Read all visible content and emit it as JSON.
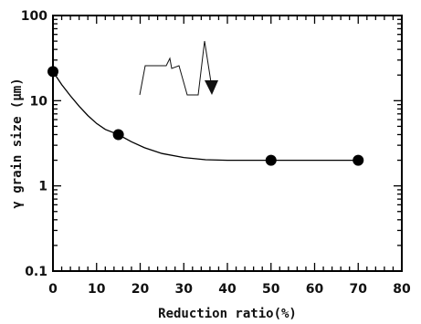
{
  "chart_data": {
    "type": "line",
    "title": "",
    "xlabel": "Reduction ratio(%)",
    "ylabel": "γ grain size (μm)",
    "xlim": [
      0,
      80
    ],
    "ylim": [
      0.1,
      100
    ],
    "y_scale": "log",
    "grid": false,
    "x_ticks": [
      "0",
      "10",
      "20",
      "30",
      "40",
      "50",
      "60",
      "70",
      "80"
    ],
    "y_ticks": [
      "0.1",
      "1",
      "10",
      "100"
    ],
    "series": [
      {
        "type": "scatter",
        "marker": "filled-circle",
        "color": "#000000",
        "points": [
          [
            0,
            22
          ],
          [
            15,
            4
          ],
          [
            50,
            2
          ],
          [
            70,
            2
          ]
        ]
      },
      {
        "type": "fit-curve",
        "color": "#000000",
        "points": [
          [
            0,
            22
          ],
          [
            2,
            15.5
          ],
          [
            4,
            11.4
          ],
          [
            6,
            8.6
          ],
          [
            8,
            6.7
          ],
          [
            10,
            5.4
          ],
          [
            12,
            4.6
          ],
          [
            15,
            4
          ],
          [
            18,
            3.3
          ],
          [
            21,
            2.8
          ],
          [
            25,
            2.4
          ],
          [
            30,
            2.15
          ],
          [
            35,
            2.03
          ],
          [
            40,
            2
          ],
          [
            50,
            2
          ],
          [
            70,
            2
          ]
        ]
      }
    ],
    "inset": {
      "description_icon": "rolling-schedule-sketch",
      "color": "#111111"
    }
  }
}
